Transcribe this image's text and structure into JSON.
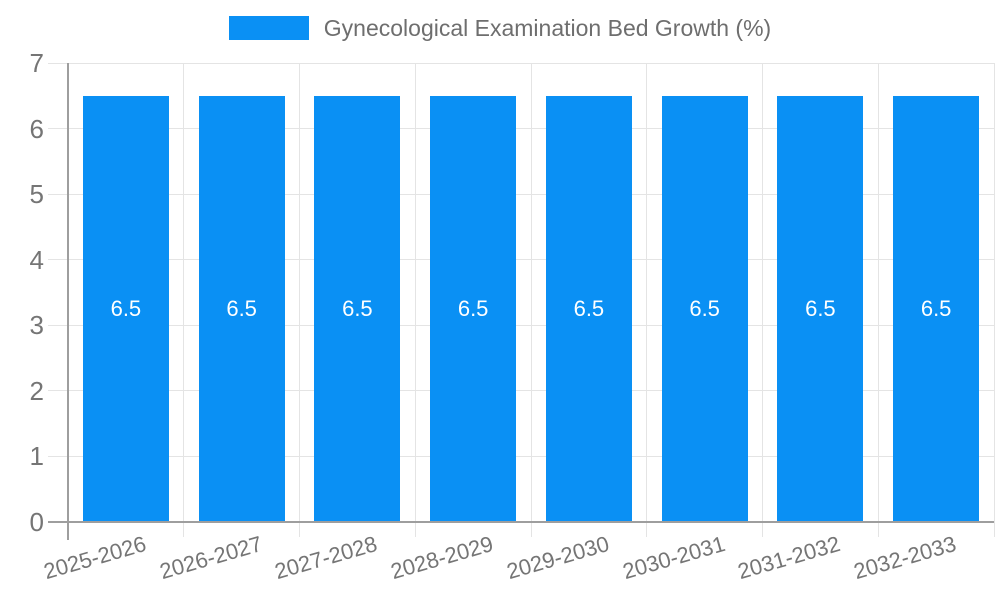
{
  "chart_data": {
    "type": "bar",
    "title": "Gynecological Examination Bed Growth (%)",
    "categories": [
      "2025-2026",
      "2026-2027",
      "2027-2028",
      "2028-2029",
      "2029-2030",
      "2030-2031",
      "2031-2032",
      "2032-2033"
    ],
    "values": [
      6.5,
      6.5,
      6.5,
      6.5,
      6.5,
      6.5,
      6.5,
      6.5
    ],
    "value_labels": [
      "6.5",
      "6.5",
      "6.5",
      "6.5",
      "6.5",
      "6.5",
      "6.5",
      "6.5"
    ],
    "xlabel": "",
    "ylabel": "",
    "ylim": [
      0,
      7
    ],
    "yticks": [
      0,
      1,
      2,
      3,
      4,
      5,
      6,
      7
    ],
    "grid": true,
    "legend_position": "top",
    "legend_entries": [
      "Gynecological Examination Bed Growth (%)"
    ],
    "colors": {
      "bar": "#0A90F4",
      "value_label": "#FFFFFF",
      "grid": "#E4E4E4",
      "axis": "#9E9E9E",
      "tick_text": "#757575",
      "title_text": "#6E6E6E",
      "background": "#FFFFFF"
    }
  }
}
